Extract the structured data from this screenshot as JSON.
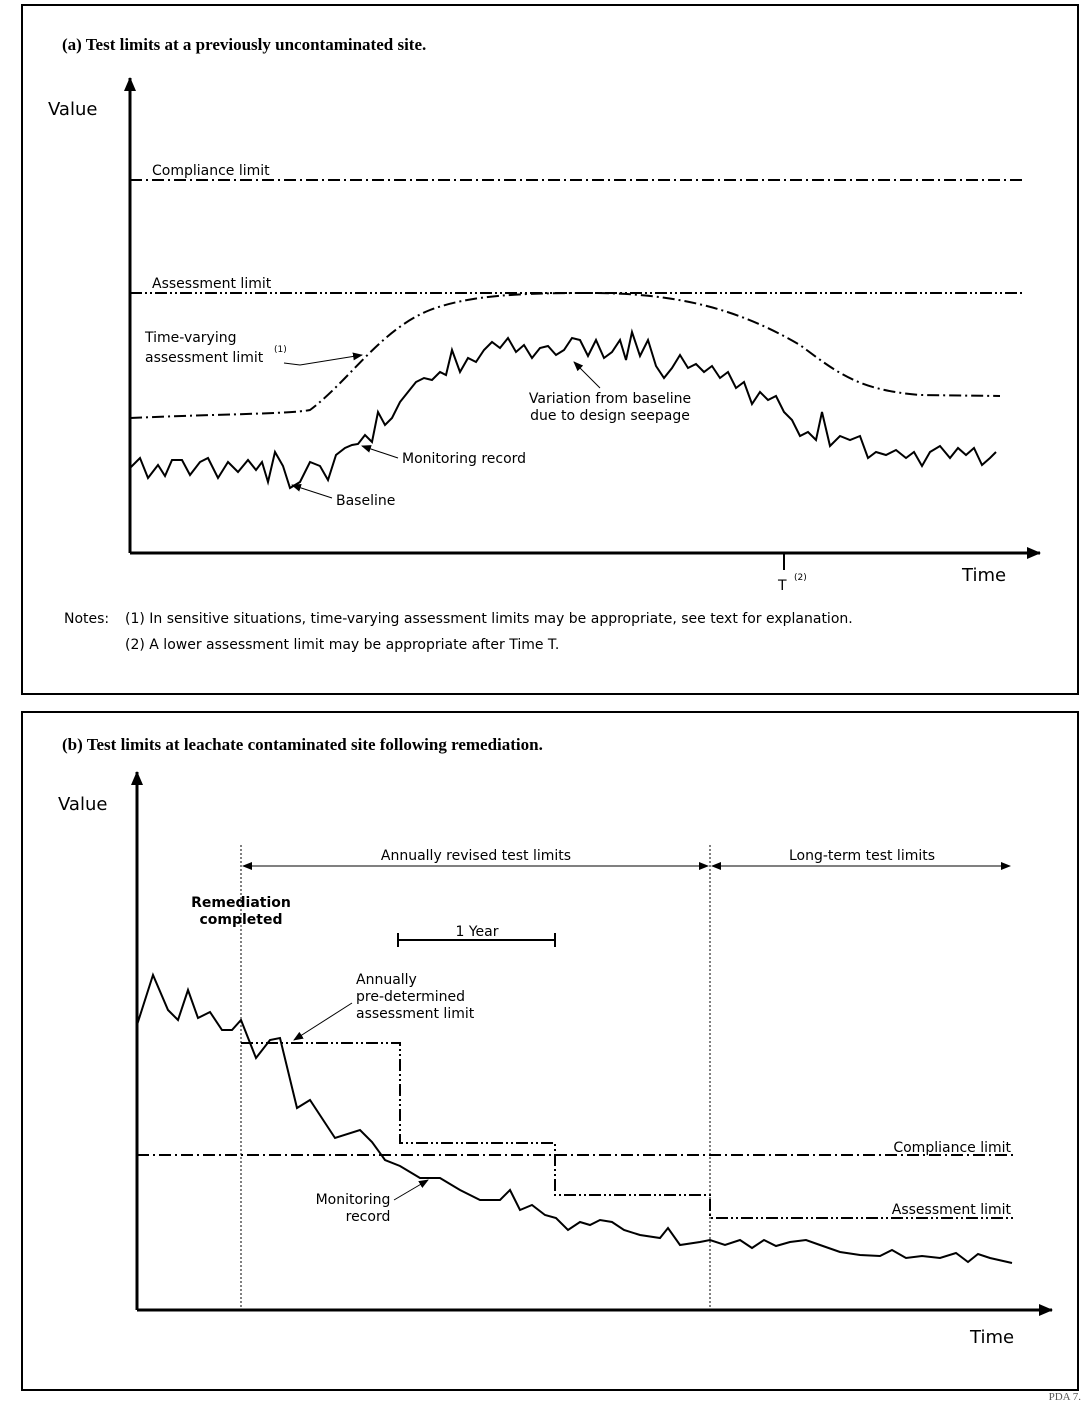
{
  "panel_a": {
    "title": "(a) Test limits at a previously uncontaminated site.",
    "y_axis": "Value",
    "x_axis": "Time",
    "compliance_limit": "Compliance limit",
    "assessment_limit": "Assessment limit",
    "time_varying": [
      "Time-varying",
      "assessment limit",
      "(1)"
    ],
    "variation": [
      "Variation from baseline",
      "due to design seepage"
    ],
    "monitoring_record": "Monitoring record",
    "baseline": "Baseline",
    "t_marker": "T",
    "t_note": "(2)",
    "notes_label": "Notes:",
    "notes": [
      "(1) In sensitive situations, time-varying assessment limits may be appropriate, see text for explanation.",
      "(2) A lower assessment limit may be appropriate after Time T."
    ]
  },
  "panel_b": {
    "title": "(b) Test limits at leachate contaminated site following remediation.",
    "y_axis": "Value",
    "x_axis": "Time",
    "annually_revised": "Annually revised test limits",
    "long_term": "Long-term test limits",
    "remediation": [
      "Remediation",
      "completed"
    ],
    "one_year": "1 Year",
    "annual_limit": [
      "Annually",
      "pre-determined",
      "assessment limit"
    ],
    "compliance_limit": "Compliance limit",
    "assessment_limit": "Assessment limit",
    "monitoring_record": [
      "Monitoring",
      "record"
    ]
  },
  "footer": "PDA 7."
}
